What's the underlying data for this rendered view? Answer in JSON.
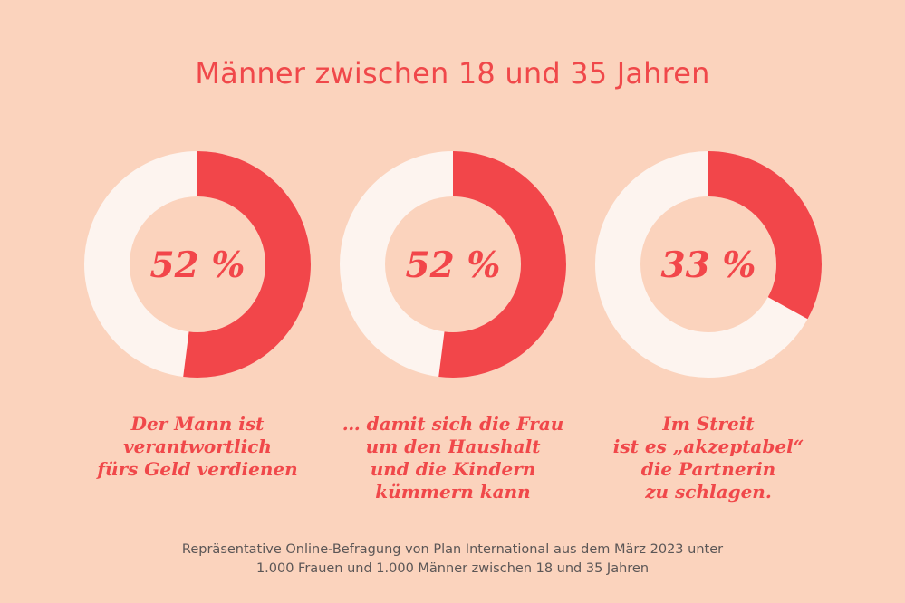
{
  "title": "Männer zwischen 18 und 35 Jahren",
  "colors": {
    "background": "#fbd3bd",
    "accent": "#f2464a",
    "ring_remainder": "#fdf4ef",
    "text_accent": "#f0484a",
    "footnote": "#5b5656"
  },
  "chart_data": [
    {
      "type": "pie",
      "variant": "donut",
      "label": "52 %",
      "value": 52,
      "max": 100,
      "caption_lines": [
        "Der Mann ist",
        "verantwortlich",
        "fürs Geld verdienen"
      ]
    },
    {
      "type": "pie",
      "variant": "donut",
      "label": "52 %",
      "value": 52,
      "max": 100,
      "caption_lines": [
        "… damit sich die Frau",
        "um den Haushalt",
        "und die Kindern",
        "kümmern kann"
      ]
    },
    {
      "type": "pie",
      "variant": "donut",
      "label": "33 %",
      "value": 33,
      "max": 100,
      "caption_lines": [
        "Im Streit",
        "ist es „akzeptabel“",
        "die Partnerin",
        "zu schlagen."
      ]
    }
  ],
  "footnote_lines": [
    "Repräsentative Online-Befragung von Plan International aus dem März 2023 unter",
    "1.000 Frauen und 1.000 Männer zwischen 18 und 35 Jahren"
  ]
}
